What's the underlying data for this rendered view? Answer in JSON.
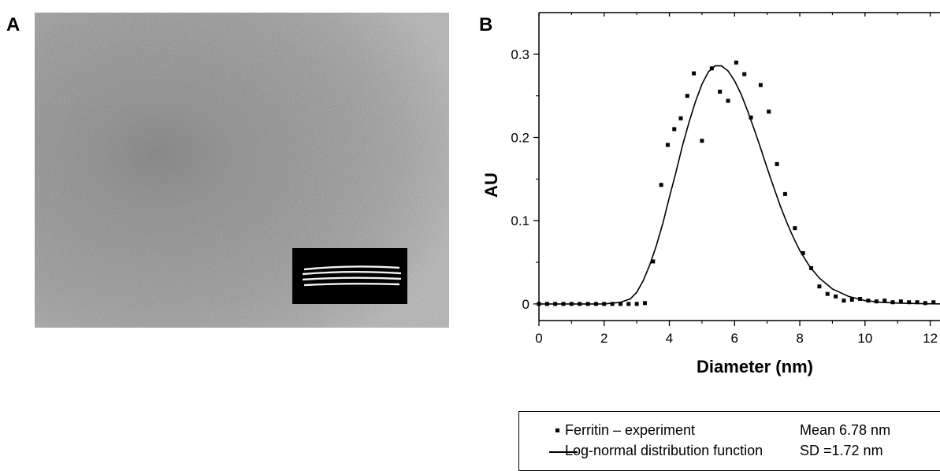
{
  "panels": {
    "a_label": "A",
    "b_label": "B"
  },
  "micrograph": {
    "background_color": "#9a9a9a",
    "inset_background_color": "#000000",
    "inset_ring_color": "#ffffff"
  },
  "legend": {
    "items": [
      {
        "label": "Ferritin – experiment",
        "stat": "Mean 6.78 nm",
        "marker": "square"
      },
      {
        "label": "Log-normal distribution function",
        "stat": "SD =1.72 nm",
        "marker": "line"
      }
    ]
  },
  "chart_data": {
    "type": "scatter",
    "title": "",
    "xlabel": "Diameter (nm)",
    "ylabel": "AU",
    "xlim": [
      0,
      12.3
    ],
    "ylim": [
      -0.02,
      0.35
    ],
    "xticks": [
      0,
      2,
      4,
      6,
      8,
      10,
      12
    ],
    "yticks": [
      0,
      0.1,
      0.2,
      0.3
    ],
    "xtick_labels": [
      "0",
      "2",
      "4",
      "6",
      "8",
      "10",
      "12"
    ],
    "ytick_labels": [
      "0",
      "0.1",
      "0.2",
      "0.3"
    ],
    "grid": false,
    "series": [
      {
        "name": "Ferritin – experiment",
        "kind": "points",
        "color": "#000000",
        "x": [
          0.0,
          0.25,
          0.5,
          0.75,
          1.0,
          1.25,
          1.5,
          1.75,
          2.0,
          2.25,
          2.5,
          2.75,
          3.0,
          3.25,
          3.5,
          3.75,
          3.95,
          4.15,
          4.35,
          4.55,
          4.75,
          5.0,
          5.3,
          5.55,
          5.8,
          6.05,
          6.3,
          6.5,
          6.8,
          7.05,
          7.3,
          7.55,
          7.85,
          8.1,
          8.35,
          8.6,
          8.85,
          9.1,
          9.35,
          9.6,
          9.85,
          10.1,
          10.35,
          10.6,
          10.85,
          11.1,
          11.35,
          11.6,
          11.85,
          12.1
        ],
        "y": [
          0.0,
          0.0,
          0.0,
          0.0,
          0.0,
          0.0,
          0.0,
          0.0,
          0.0,
          0.0,
          0.0,
          0.0,
          0.0,
          0.001,
          0.051,
          0.143,
          0.191,
          0.21,
          0.223,
          0.25,
          0.277,
          0.196,
          0.283,
          0.255,
          0.244,
          0.29,
          0.276,
          0.224,
          0.263,
          0.231,
          0.168,
          0.132,
          0.091,
          0.061,
          0.043,
          0.021,
          0.012,
          0.009,
          0.004,
          0.005,
          0.006,
          0.004,
          0.003,
          0.004,
          0.002,
          0.003,
          0.002,
          0.002,
          0.001,
          0.002
        ]
      },
      {
        "name": "Log-normal distribution function",
        "kind": "line",
        "color": "#000000",
        "x": [
          0,
          1,
          2,
          2.5,
          2.8,
          3.0,
          3.2,
          3.4,
          3.6,
          3.8,
          4.0,
          4.2,
          4.4,
          4.6,
          4.8,
          5.0,
          5.2,
          5.4,
          5.6,
          5.8,
          6.0,
          6.2,
          6.4,
          6.6,
          6.8,
          7.0,
          7.2,
          7.4,
          7.6,
          7.8,
          8.0,
          8.3,
          8.6,
          9.0,
          9.5,
          10.0,
          10.5,
          11.0,
          11.5,
          12.0,
          12.3
        ],
        "y": [
          0,
          0,
          0,
          0.002,
          0.006,
          0.014,
          0.028,
          0.047,
          0.07,
          0.097,
          0.128,
          0.158,
          0.19,
          0.218,
          0.243,
          0.264,
          0.279,
          0.286,
          0.286,
          0.28,
          0.268,
          0.252,
          0.232,
          0.21,
          0.187,
          0.163,
          0.14,
          0.118,
          0.098,
          0.08,
          0.064,
          0.045,
          0.031,
          0.018,
          0.009,
          0.004,
          0.002,
          0.001,
          0.0005,
          0.0002,
          0.0001
        ]
      }
    ]
  }
}
